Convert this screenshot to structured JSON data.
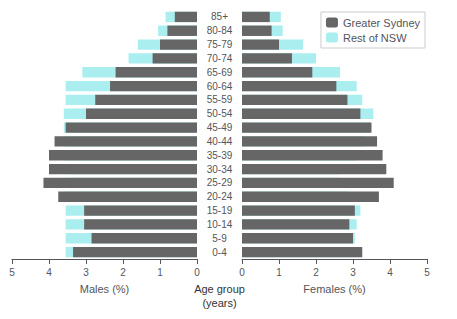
{
  "chart_data": [
    {
      "type": "bar",
      "orientation": "horizontal",
      "categories": [
        "0-4",
        "5-9",
        "10-14",
        "15-19",
        "20-24",
        "25-29",
        "30-34",
        "35-39",
        "40-44",
        "45-49",
        "50-54",
        "55-59",
        "60-64",
        "65-69",
        "70-74",
        "75-79",
        "80-84",
        "85+"
      ],
      "series": [
        {
          "name": "Greater Sydney",
          "color": "#666666",
          "values": [
            3.35,
            2.85,
            3.05,
            3.05,
            3.75,
            4.15,
            4.0,
            4.0,
            3.85,
            3.55,
            3.0,
            2.75,
            2.35,
            2.2,
            1.2,
            1.0,
            0.8,
            0.6
          ]
        },
        {
          "name": "Rest of NSW",
          "color": "#aaeef0",
          "values": [
            3.55,
            3.55,
            3.55,
            3.55,
            3.55,
            3.55,
            3.55,
            3.55,
            3.55,
            3.6,
            3.6,
            3.55,
            3.55,
            3.1,
            1.85,
            1.6,
            1.05,
            0.85
          ]
        }
      ],
      "xlabel": "Males (%)",
      "xlim": [
        5,
        0
      ],
      "xticks": [
        5,
        4,
        3,
        2,
        1,
        0
      ],
      "grid": false
    },
    {
      "type": "bar",
      "orientation": "horizontal",
      "categories": [
        "0-4",
        "5-9",
        "10-14",
        "15-19",
        "20-24",
        "25-29",
        "30-34",
        "35-39",
        "40-44",
        "45-49",
        "50-54",
        "55-59",
        "60-64",
        "65-69",
        "70-74",
        "75-79",
        "80-84",
        "85+"
      ],
      "series": [
        {
          "name": "Greater Sydney",
          "color": "#666666",
          "values": [
            3.25,
            3.0,
            2.9,
            3.05,
            3.7,
            4.1,
            3.9,
            3.8,
            3.65,
            3.5,
            3.2,
            2.85,
            2.55,
            1.9,
            1.35,
            1.0,
            0.8,
            0.75
          ]
        },
        {
          "name": "Rest of NSW",
          "color": "#aaeef0",
          "values": [
            3.1,
            3.05,
            3.1,
            3.2,
            2.85,
            2.65,
            2.65,
            3.1,
            3.3,
            3.45,
            3.55,
            3.25,
            3.1,
            2.65,
            2.0,
            1.65,
            1.1,
            1.05
          ]
        }
      ],
      "xlabel": "Females (%)",
      "xlim": [
        0,
        5
      ],
      "xticks": [
        0,
        1,
        2,
        3,
        4,
        5
      ],
      "grid": false,
      "legend": "upper right",
      "ylabel": "Age group\n(years)"
    }
  ]
}
